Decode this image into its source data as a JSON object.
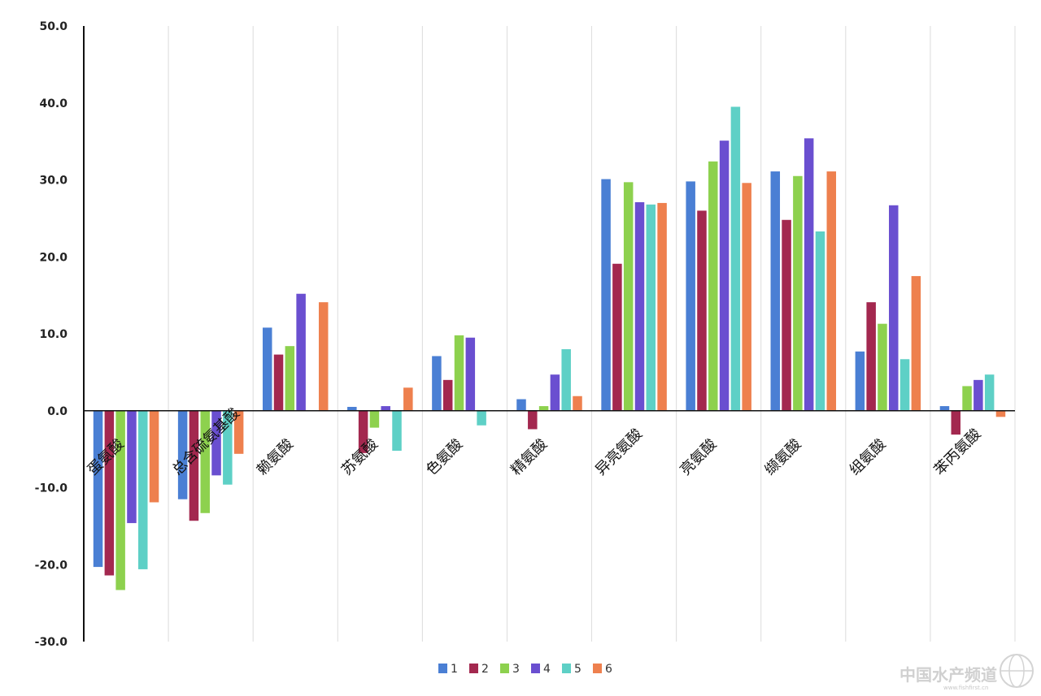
{
  "chart_data": {
    "type": "bar",
    "categories": [
      "蛋氨酸",
      "总含硫氨基酸",
      "赖氨酸",
      "苏氨酸",
      "色氨酸",
      "精氨酸",
      "异亮氨酸",
      "亮氨酸",
      "缬氨酸",
      "组氨酸",
      "苯丙氨酸"
    ],
    "series": [
      {
        "name": "1",
        "color": "#4a7fd4",
        "values": [
          -20.3,
          -11.5,
          10.8,
          0.5,
          7.1,
          1.5,
          30.1,
          29.8,
          31.1,
          7.7,
          0.6
        ]
      },
      {
        "name": "2",
        "color": "#a3284f",
        "values": [
          -21.4,
          -14.3,
          7.3,
          -5.5,
          4.0,
          -2.4,
          19.1,
          26.0,
          24.8,
          14.1,
          -3.1
        ]
      },
      {
        "name": "3",
        "color": "#8dd14e",
        "values": [
          -23.3,
          -13.3,
          8.4,
          -2.2,
          9.8,
          0.6,
          29.7,
          32.4,
          30.5,
          11.3,
          3.2
        ]
      },
      {
        "name": "4",
        "color": "#6a4fd0",
        "values": [
          -14.6,
          -8.4,
          15.2,
          0.6,
          9.5,
          4.7,
          27.1,
          35.1,
          35.4,
          26.7,
          4.0
        ]
      },
      {
        "name": "5",
        "color": "#5ed0c6",
        "values": [
          -20.6,
          -9.6,
          0.0,
          -5.2,
          -1.9,
          8.0,
          26.8,
          39.5,
          23.3,
          6.7,
          4.7
        ]
      },
      {
        "name": "6",
        "color": "#ee804e",
        "values": [
          -11.9,
          -5.6,
          14.1,
          3.0,
          0.0,
          1.9,
          27.0,
          29.6,
          31.1,
          17.5,
          -0.8
        ]
      }
    ],
    "ylim": [
      -30,
      50
    ],
    "yticks": [
      "50.0",
      "40.0",
      "30.0",
      "20.0",
      "10.0",
      "0.0",
      "-10.0",
      "-20.0",
      "-30.0"
    ],
    "ytick_values": [
      50,
      40,
      30,
      20,
      10,
      0,
      -10,
      -20,
      -30
    ],
    "grid": "vertical",
    "legend": "bottom",
    "xlabel": "",
    "ylabel": ""
  },
  "watermark": {
    "text": "中国水产频道",
    "sub": "www.fishfirst.cn"
  }
}
